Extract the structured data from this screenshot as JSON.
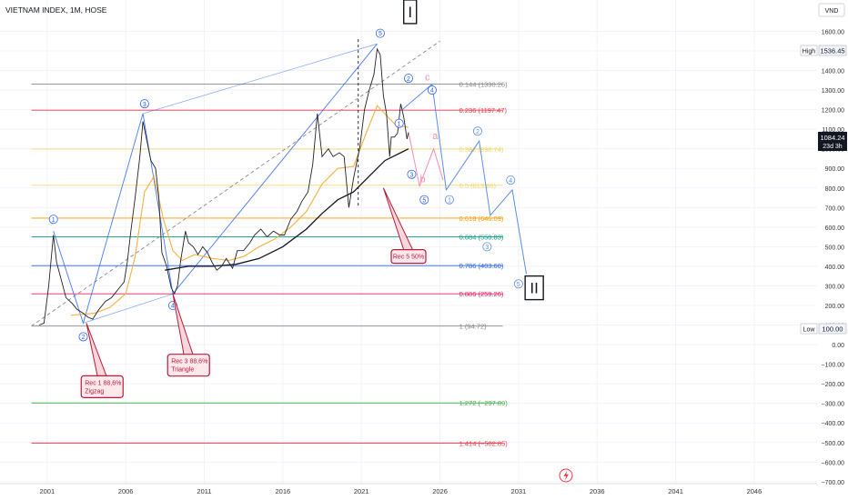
{
  "header": {
    "title": "VIETNAM INDEX, 1M, HOSE"
  },
  "currency": "VND",
  "price_badges": {
    "high": {
      "label": "High",
      "value": "1536.45"
    },
    "last": {
      "value": "1084.24",
      "countdown": "23d 3h"
    },
    "low": {
      "label": "Low",
      "value": "100.00"
    }
  },
  "colors": {
    "fib_gray": "#888888",
    "fib_red": "#f23645",
    "fib_yellow": "#f5d76e",
    "fib_orange": "#ff9800",
    "fib_teal": "#089981",
    "fib_blue": "#2962ff",
    "fib_pink": "#e91e63",
    "fib_green": "#4caf50",
    "wave_blue": "#2962ff",
    "projection_blue": "#5b8def",
    "corrective_pink": "#f48fb1",
    "callout_red": "#b71c3c",
    "price_black": "#222222",
    "ma_orange": "#f5b041"
  },
  "chart_data": {
    "type": "line",
    "title": "VIETNAM INDEX, 1M, HOSE",
    "xlabel": "",
    "ylabel": "",
    "xlim": [
      1998.0,
      2050.0
    ],
    "ylim": [
      -710,
      1760
    ],
    "y_ticks": [
      1600,
      1500,
      1400,
      1300,
      1200,
      1100,
      1000,
      900,
      800,
      700,
      600,
      500,
      400,
      300,
      200,
      100,
      0,
      -100,
      -200,
      -300,
      -400,
      -500,
      -600,
      -700
    ],
    "x_ticks": [
      {
        "x": 2001,
        "label": "2001"
      },
      {
        "x": 2006,
        "label": "2006"
      },
      {
        "x": 2011,
        "label": "2011"
      },
      {
        "x": 2016,
        "label": "2016"
      },
      {
        "x": 2021,
        "label": "2021"
      },
      {
        "x": 2026,
        "label": "2026"
      },
      {
        "x": 2031,
        "label": "2031"
      },
      {
        "x": 2036,
        "label": "2036"
      },
      {
        "x": 2041,
        "label": "2041"
      },
      {
        "x": 2046,
        "label": "2046"
      }
    ],
    "grid": true,
    "price_series": [
      [
        2000.5,
        100
      ],
      [
        2000.8,
        110
      ],
      [
        2001.1,
        300
      ],
      [
        2001.4,
        560
      ],
      [
        2001.6,
        420
      ],
      [
        2001.9,
        330
      ],
      [
        2002.2,
        240
      ],
      [
        2002.6,
        210
      ],
      [
        2002.9,
        180
      ],
      [
        2003.3,
        160
      ],
      [
        2003.6,
        140
      ],
      [
        2003.9,
        130
      ],
      [
        2004.3,
        180
      ],
      [
        2004.7,
        220
      ],
      [
        2005.1,
        240
      ],
      [
        2005.6,
        290
      ],
      [
        2005.9,
        320
      ],
      [
        2006.1,
        420
      ],
      [
        2006.3,
        560
      ],
      [
        2006.6,
        750
      ],
      [
        2006.9,
        960
      ],
      [
        2007.1,
        1140
      ],
      [
        2007.3,
        1060
      ],
      [
        2007.6,
        940
      ],
      [
        2007.9,
        900
      ],
      [
        2008.1,
        760
      ],
      [
        2008.3,
        470
      ],
      [
        2008.6,
        400
      ],
      [
        2008.9,
        290
      ],
      [
        2009.1,
        260
      ],
      [
        2009.3,
        300
      ],
      [
        2009.5,
        430
      ],
      [
        2009.8,
        580
      ],
      [
        2010.0,
        520
      ],
      [
        2010.3,
        500
      ],
      [
        2010.6,
        460
      ],
      [
        2010.9,
        500
      ],
      [
        2011.2,
        470
      ],
      [
        2011.5,
        420
      ],
      [
        2011.8,
        380
      ],
      [
        2012.1,
        400
      ],
      [
        2012.4,
        440
      ],
      [
        2012.8,
        390
      ],
      [
        2013.1,
        480
      ],
      [
        2013.5,
        480
      ],
      [
        2013.9,
        520
      ],
      [
        2014.2,
        560
      ],
      [
        2014.6,
        590
      ],
      [
        2015.0,
        550
      ],
      [
        2015.4,
        580
      ],
      [
        2015.8,
        560
      ],
      [
        2016.1,
        560
      ],
      [
        2016.5,
        640
      ],
      [
        2016.9,
        680
      ],
      [
        2017.2,
        730
      ],
      [
        2017.6,
        780
      ],
      [
        2017.9,
        920
      ],
      [
        2018.2,
        1180
      ],
      [
        2018.5,
        960
      ],
      [
        2018.9,
        1000
      ],
      [
        2019.2,
        960
      ],
      [
        2019.6,
        980
      ],
      [
        2019.9,
        960
      ],
      [
        2020.2,
        700
      ],
      [
        2020.5,
        850
      ],
      [
        2020.9,
        1010
      ],
      [
        2021.2,
        1200
      ],
      [
        2021.5,
        1300
      ],
      [
        2021.8,
        1380
      ],
      [
        2022.0,
        1510
      ],
      [
        2022.2,
        1480
      ],
      [
        2022.4,
        1270
      ],
      [
        2022.6,
        1180
      ],
      [
        2022.8,
        960
      ],
      [
        2022.9,
        1060
      ],
      [
        2023.1,
        1060
      ],
      [
        2023.3,
        1080
      ],
      [
        2023.5,
        1230
      ],
      [
        2023.7,
        1160
      ],
      [
        2023.9,
        1050
      ],
      [
        2024.0,
        1084
      ]
    ],
    "ma_series": [
      [
        2002.5,
        150
      ],
      [
        2004.0,
        160
      ],
      [
        2005.0,
        190
      ],
      [
        2006.0,
        260
      ],
      [
        2006.6,
        450
      ],
      [
        2007.2,
        780
      ],
      [
        2007.8,
        860
      ],
      [
        2008.4,
        640
      ],
      [
        2009.0,
        480
      ],
      [
        2009.6,
        430
      ],
      [
        2010.4,
        460
      ],
      [
        2011.5,
        440
      ],
      [
        2012.6,
        430
      ],
      [
        2013.5,
        450
      ],
      [
        2014.5,
        500
      ],
      [
        2015.5,
        540
      ],
      [
        2016.5,
        600
      ],
      [
        2017.5,
        680
      ],
      [
        2018.5,
        820
      ],
      [
        2019.5,
        900
      ],
      [
        2020.5,
        910
      ],
      [
        2021.3,
        1080
      ],
      [
        2022.0,
        1220
      ],
      [
        2022.6,
        1170
      ],
      [
        2023.2,
        1120
      ],
      [
        2024.0,
        1110
      ]
    ],
    "lt_ma_series": [
      [
        2008.5,
        380
      ],
      [
        2010.0,
        400
      ],
      [
        2011.5,
        400
      ],
      [
        2013.0,
        410
      ],
      [
        2014.5,
        440
      ],
      [
        2016.0,
        500
      ],
      [
        2017.5,
        590
      ],
      [
        2018.5,
        670
      ],
      [
        2019.5,
        740
      ],
      [
        2020.5,
        780
      ],
      [
        2021.5,
        860
      ],
      [
        2022.5,
        940
      ],
      [
        2023.5,
        980
      ],
      [
        2024.0,
        1000
      ]
    ],
    "fib_levels": [
      {
        "y": 1330.26,
        "label": "0.144 (1330.26)",
        "color": "#888888"
      },
      {
        "y": 1197.47,
        "label": "0.236 (1197.47)",
        "color": "#f23645"
      },
      {
        "y": 998.74,
        "label": "0.382 (998.74)",
        "color": "#f5d76e"
      },
      {
        "y": 813.86,
        "label": "0.5 (813.86)",
        "color": "#f5d76e"
      },
      {
        "y": 646.09,
        "label": "0.618 (646.09)",
        "color": "#ff9800"
      },
      {
        "y": 550.83,
        "label": "0.684 (550.83)",
        "color": "#089981"
      },
      {
        "y": 403.6,
        "label": "0.786 (403.60)",
        "color": "#2962ff"
      },
      {
        "y": 259.26,
        "label": "0.886 (259.26)",
        "color": "#e91e63"
      },
      {
        "y": 94.72,
        "label": "1 (94.72)",
        "color": "#888888"
      },
      {
        "y": -297.89,
        "label": "1.272 (−297.89)",
        "color": "#4caf50"
      },
      {
        "y": -502.85,
        "label": "1.414 (−502.85)",
        "color": "#f23645"
      }
    ],
    "fib_x_range": [
      2000.0,
      2030.0
    ],
    "impulse_path": [
      [
        2001.4,
        580
      ],
      [
        2003.3,
        110
      ],
      [
        2007.1,
        1180
      ],
      [
        2009.0,
        259
      ],
      [
        2022.0,
        1536
      ]
    ],
    "wave_labels": [
      {
        "x": 2001.4,
        "y": 640,
        "label": "1"
      },
      {
        "x": 2003.3,
        "y": 40,
        "label": "2"
      },
      {
        "x": 2007.2,
        "y": 1230,
        "label": "3"
      },
      {
        "x": 2009.0,
        "y": 200,
        "label": "4"
      },
      {
        "x": 2022.2,
        "y": 1590,
        "label": "5"
      }
    ],
    "sub_wave_labels": [
      {
        "x": 2023.4,
        "y": 1130,
        "label": "1"
      },
      {
        "x": 2024.0,
        "y": 1360,
        "label": "2"
      },
      {
        "x": 2024.2,
        "y": 870,
        "label": "3"
      },
      {
        "x": 2025.5,
        "y": 1300,
        "label": "4"
      },
      {
        "x": 2025.0,
        "y": 740,
        "label": "5"
      }
    ],
    "projection_path": [
      [
        2023.6,
        1200
      ],
      [
        2025.5,
        1330
      ],
      [
        2026.4,
        790
      ],
      [
        2028.5,
        1040
      ],
      [
        2029.2,
        660
      ],
      [
        2030.6,
        790
      ],
      [
        2031.5,
        360
      ]
    ],
    "projection_labels": [
      {
        "x": 2026.6,
        "y": 740,
        "label": "1"
      },
      {
        "x": 2028.4,
        "y": 1090,
        "label": "2"
      },
      {
        "x": 2029.0,
        "y": 500,
        "label": "3"
      },
      {
        "x": 2030.5,
        "y": 840,
        "label": "4"
      },
      {
        "x": 2031.0,
        "y": 310,
        "label": "5"
      }
    ],
    "corrective_path": [
      [
        2024.0,
        1084
      ],
      [
        2024.7,
        810
      ],
      [
        2025.6,
        1000
      ],
      [
        2026.2,
        840
      ]
    ],
    "corrective_labels": [
      {
        "x": 2025.2,
        "y": 1350,
        "label": "c"
      },
      {
        "x": 2025.7,
        "y": 1050,
        "label": "a"
      },
      {
        "x": 2024.9,
        "y": 830,
        "label": "b"
      }
    ],
    "trend_dashed": [
      [
        2000.0,
        94.72
      ],
      [
        2026.0,
        1550
      ]
    ],
    "vertical_dashed": {
      "x": 2020.8,
      "y_top": 1560,
      "y_bottom": 700
    },
    "degree_labels": [
      {
        "label": "I",
        "x": 2024.1,
        "y": 1700
      },
      {
        "label": "II",
        "x": 2032.0,
        "y": 290
      }
    ],
    "callouts": [
      {
        "text": "Rec 1 88,6%",
        "text2": "Zigzag",
        "anchor": [
          2003.5,
          110
        ],
        "x": 2004.5,
        "y": -215
      },
      {
        "text": "Rec 3 88,6%",
        "text2": "Triangle",
        "anchor": [
          2009.0,
          259
        ],
        "x": 2010.0,
        "y": -105
      },
      {
        "text": "Rec 5 50%",
        "text2": "",
        "anchor": [
          2022.4,
          800
        ],
        "x": 2024.0,
        "y": 450
      }
    ]
  }
}
